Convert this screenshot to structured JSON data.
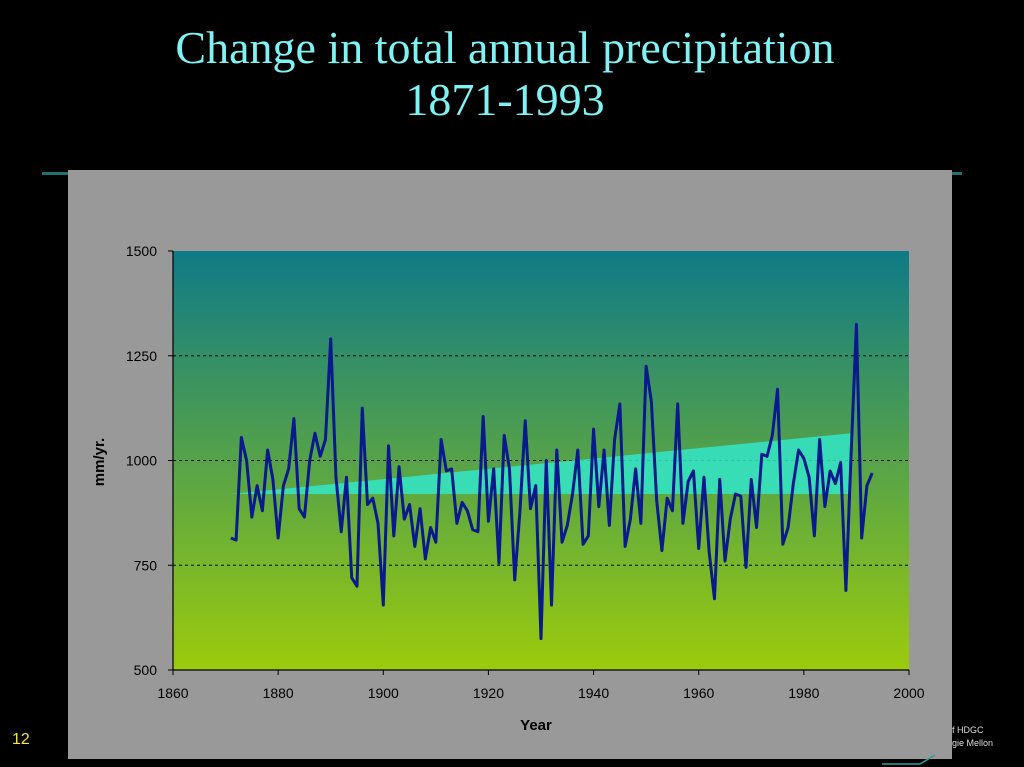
{
  "slide": {
    "title_line1": "Change in total annual precipitation",
    "title_line2": "1871-1993",
    "number": "12",
    "footer_line1": "f HDGC",
    "footer_line2": "gie Mellon"
  },
  "colors": {
    "title": "#7ff3f3",
    "slide_number": "#f6e63a",
    "panel": "#999999",
    "plot_top": "#0f7a86",
    "plot_bottom": "#9ccb0c",
    "series_line": "#0a1a8c",
    "trend_fill": "#33e6c9"
  },
  "chart_data": {
    "type": "line",
    "xlabel": "Year",
    "ylabel": "mm/yr.",
    "xlim": [
      1860,
      2000
    ],
    "ylim": [
      500,
      1500
    ],
    "x_ticks": [
      1860,
      1880,
      1900,
      1920,
      1940,
      1960,
      1980,
      2000
    ],
    "y_ticks": [
      500,
      750,
      1000,
      1250,
      1500
    ],
    "grid": "dashed horizontal at 750, 1000, 1250",
    "background": "vertical gradient teal to yellow-green",
    "series": [
      {
        "x": [
          1871,
          1872,
          1873,
          1874,
          1875,
          1876,
          1877,
          1878,
          1879,
          1880,
          1881,
          1882,
          1883,
          1884,
          1885,
          1886,
          1887,
          1888,
          1889,
          1890,
          1891,
          1892,
          1893,
          1894,
          1895,
          1896,
          1897,
          1898,
          1899,
          1900,
          1901,
          1902,
          1903,
          1904,
          1905,
          1906,
          1907,
          1908,
          1909,
          1910,
          1911,
          1912,
          1913,
          1914,
          1915,
          1916,
          1917,
          1918,
          1919,
          1920,
          1921,
          1922,
          1923,
          1924,
          1925,
          1926,
          1927,
          1928,
          1929,
          1930,
          1931,
          1932,
          1933,
          1934,
          1935,
          1936,
          1937,
          1938,
          1939,
          1940,
          1941,
          1942,
          1943,
          1944,
          1945,
          1946,
          1947,
          1948,
          1949,
          1950,
          1951,
          1952,
          1953,
          1954,
          1955,
          1956,
          1957,
          1958,
          1959,
          1960,
          1961,
          1962,
          1963,
          1964,
          1965,
          1966,
          1967,
          1968,
          1969,
          1970,
          1971,
          1972,
          1973,
          1974,
          1975,
          1976,
          1977,
          1978,
          1979,
          1980,
          1981,
          1982,
          1983,
          1984,
          1985,
          1986,
          1987,
          1988,
          1989,
          1990,
          1991,
          1992,
          1993
        ],
        "values": [
          815,
          810,
          1055,
          1000,
          865,
          940,
          880,
          1025,
          955,
          815,
          940,
          980,
          1100,
          885,
          865,
          1000,
          1065,
          1010,
          1050,
          1290,
          960,
          830,
          960,
          720,
          700,
          1125,
          895,
          910,
          850,
          655,
          1035,
          820,
          985,
          860,
          895,
          795,
          885,
          765,
          840,
          805,
          1050,
          975,
          980,
          850,
          900,
          880,
          835,
          830,
          1105,
          855,
          980,
          755,
          1060,
          980,
          715,
          880,
          1095,
          885,
          940,
          575,
          1000,
          655,
          1025,
          805,
          845,
          920,
          1025,
          800,
          820,
          1075,
          890,
          1025,
          845,
          1050,
          1135,
          795,
          860,
          980,
          850,
          1225,
          1140,
          905,
          785,
          910,
          880,
          1135,
          850,
          950,
          975,
          790,
          960,
          780,
          670,
          955,
          760,
          860,
          920,
          915,
          745,
          955,
          840,
          1015,
          1010,
          1060,
          1170,
          800,
          840,
          945,
          1025,
          1005,
          960,
          820,
          1050,
          890,
          975,
          945,
          995,
          690,
          1020,
          1325,
          815,
          940,
          970
        ]
      }
    ],
    "trend": {
      "start_year": 1871,
      "end_year": 1989,
      "baseline_value": 920,
      "end_value": 1065
    }
  }
}
